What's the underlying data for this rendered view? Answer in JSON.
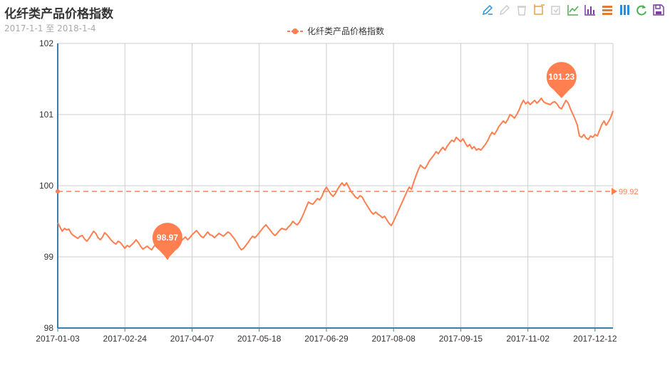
{
  "title": "化纤类产品价格指数",
  "subtitle": "2017-1-1 至 2018-1-4",
  "legend_label": "化纤类产品价格指数",
  "colors": {
    "series": "#ff7f50",
    "axis": "#3a7fa8",
    "grid": "#cccccc",
    "text": "#333333"
  },
  "toolbox": [
    {
      "icon": "mark-pen-icon",
      "color": "#2c8ed6"
    },
    {
      "icon": "mark-undo-icon",
      "color": "#cccccc"
    },
    {
      "icon": "mark-clear-icon",
      "color": "#cccccc"
    },
    {
      "icon": "data-zoom-icon",
      "color": "#e5a240"
    },
    {
      "icon": "data-zoom-reset-icon",
      "color": "#cccccc"
    },
    {
      "icon": "line-chart-icon",
      "color": "#4caf50"
    },
    {
      "icon": "bar-chart-icon",
      "color": "#7b3fa0"
    },
    {
      "icon": "stack-icon",
      "color": "#e07b39"
    },
    {
      "icon": "tiled-icon",
      "color": "#2c8ed6"
    },
    {
      "icon": "restore-icon",
      "color": "#4caf50"
    },
    {
      "icon": "save-image-icon",
      "color": "#7b3fa0"
    }
  ],
  "chart_data": {
    "type": "line",
    "series_name": "化纤类产品价格指数",
    "ylim": [
      98,
      102
    ],
    "yticks": [
      98,
      99,
      100,
      101,
      102
    ],
    "xtick_labels": [
      "2017-01-03",
      "2017-02-24",
      "2017-04-07",
      "2017-05-18",
      "2017-06-29",
      "2017-08-08",
      "2017-09-15",
      "2017-11-02",
      "2017-12-12"
    ],
    "xtick_index": [
      0,
      30,
      60,
      90,
      120,
      150,
      180,
      210,
      240
    ],
    "grid": true,
    "legend": "top-center",
    "values": [
      99.48,
      99.42,
      99.36,
      99.4,
      99.38,
      99.39,
      99.33,
      99.3,
      99.28,
      99.26,
      99.29,
      99.3,
      99.25,
      99.22,
      99.26,
      99.31,
      99.36,
      99.33,
      99.27,
      99.24,
      99.28,
      99.34,
      99.31,
      99.27,
      99.23,
      99.2,
      99.18,
      99.22,
      99.2,
      99.16,
      99.12,
      99.16,
      99.14,
      99.17,
      99.2,
      99.24,
      99.2,
      99.15,
      99.11,
      99.13,
      99.15,
      99.12,
      99.1,
      99.15,
      99.18,
      99.2,
      99.14,
      99.08,
      99.02,
      98.97,
      99.03,
      99.08,
      99.13,
      99.17,
      99.2,
      99.22,
      99.25,
      99.28,
      99.24,
      99.27,
      99.31,
      99.34,
      99.37,
      99.33,
      99.29,
      99.27,
      99.31,
      99.35,
      99.31,
      99.3,
      99.27,
      99.3,
      99.33,
      99.31,
      99.29,
      99.32,
      99.35,
      99.33,
      99.29,
      99.25,
      99.2,
      99.14,
      99.1,
      99.12,
      99.16,
      99.2,
      99.25,
      99.29,
      99.27,
      99.3,
      99.34,
      99.38,
      99.42,
      99.45,
      99.41,
      99.37,
      99.33,
      99.3,
      99.33,
      99.37,
      99.4,
      99.39,
      99.38,
      99.42,
      99.45,
      99.5,
      99.47,
      99.45,
      99.49,
      99.55,
      99.62,
      99.7,
      99.77,
      99.75,
      99.74,
      99.78,
      99.82,
      99.8,
      99.85,
      99.93,
      99.98,
      99.93,
      99.88,
      99.85,
      99.89,
      99.95,
      100.0,
      100.04,
      100.0,
      100.04,
      99.98,
      99.92,
      99.88,
      99.84,
      99.82,
      99.86,
      99.84,
      99.78,
      99.73,
      99.68,
      99.63,
      99.6,
      99.63,
      99.6,
      99.58,
      99.55,
      99.57,
      99.52,
      99.47,
      99.44,
      99.5,
      99.57,
      99.64,
      99.71,
      99.78,
      99.85,
      99.92,
      99.98,
      99.95,
      100.05,
      100.14,
      100.22,
      100.29,
      100.26,
      100.24,
      100.29,
      100.35,
      100.39,
      100.43,
      100.48,
      100.45,
      100.5,
      100.54,
      100.5,
      100.56,
      100.6,
      100.64,
      100.62,
      100.68,
      100.65,
      100.62,
      100.66,
      100.6,
      100.55,
      100.58,
      100.52,
      100.55,
      100.5,
      100.52,
      100.5,
      100.54,
      100.58,
      100.63,
      100.7,
      100.75,
      100.72,
      100.77,
      100.83,
      100.87,
      100.91,
      100.88,
      100.93,
      101.0,
      100.98,
      100.95,
      101.0,
      101.06,
      101.14,
      101.2,
      101.15,
      101.18,
      101.14,
      101.17,
      101.2,
      101.16,
      101.19,
      101.23,
      101.18,
      101.16,
      101.15,
      101.14,
      101.17,
      101.18,
      101.15,
      101.1,
      101.08,
      101.14,
      101.2,
      101.16,
      101.08,
      101.01,
      100.94,
      100.86,
      100.7,
      100.68,
      100.72,
      100.67,
      100.65,
      100.7,
      100.68,
      100.72,
      100.7,
      100.78,
      100.86,
      100.91,
      100.85,
      100.9,
      100.96,
      101.05
    ],
    "mark_points": [
      {
        "label": "101.23",
        "type": "max",
        "value": 101.23,
        "index": 225
      },
      {
        "label": "98.97",
        "type": "min",
        "value": 98.97,
        "index": 49
      }
    ],
    "mark_line": {
      "label": "99.92",
      "type": "average",
      "value": 99.92
    }
  }
}
